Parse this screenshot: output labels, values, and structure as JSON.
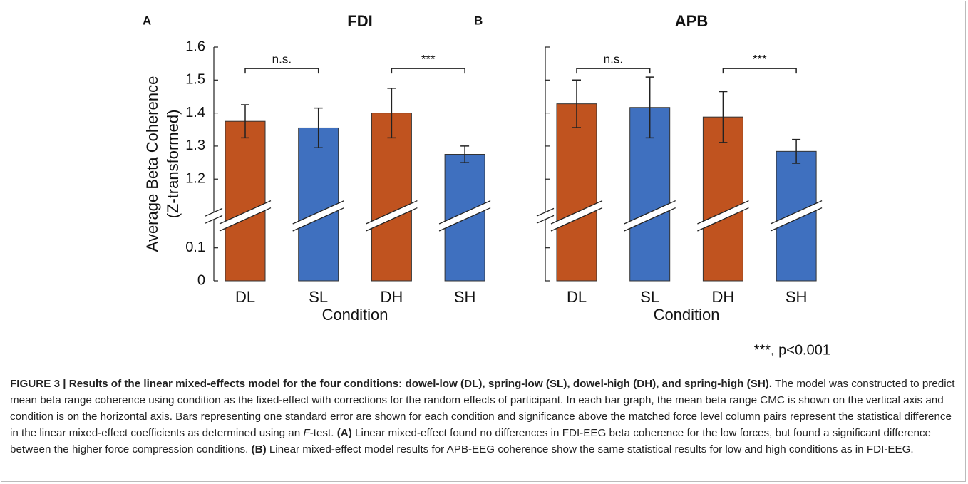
{
  "chart_data": [
    {
      "type": "bar",
      "panel": "A",
      "title": "FDI",
      "ylabel": [
        "Average Beta Coherence",
        "(Z-transformed)"
      ],
      "xlabel": "Condition",
      "categories": [
        "DL",
        "SL",
        "DH",
        "SH"
      ],
      "values": [
        1.375,
        1.355,
        1.4,
        1.275
      ],
      "errors": [
        0.05,
        0.06,
        0.075,
        0.025
      ],
      "colors": [
        "#c0531f",
        "#3f70bf",
        "#c0531f",
        "#3f70bf"
      ],
      "ylim": [
        0,
        1.6
      ],
      "axis_break": [
        0.17,
        1.12
      ],
      "yticks": [
        0,
        0.1,
        1.2,
        1.3,
        1.4,
        1.5,
        1.6
      ],
      "ytick_labels": true,
      "annotations": [
        {
          "text": "n.s.",
          "pair": [
            "DL",
            "SL"
          ],
          "level": 1.535
        },
        {
          "text": "***",
          "pair": [
            "DH",
            "SH"
          ],
          "level": 1.535
        }
      ]
    },
    {
      "type": "bar",
      "panel": "B",
      "title": "APB",
      "xlabel": "Condition",
      "categories": [
        "DL",
        "SL",
        "DH",
        "SH"
      ],
      "values": [
        1.428,
        1.417,
        1.388,
        1.284
      ],
      "errors": [
        0.072,
        0.092,
        0.077,
        0.036
      ],
      "colors": [
        "#c0531f",
        "#3f70bf",
        "#c0531f",
        "#3f70bf"
      ],
      "ylim": [
        0,
        1.6
      ],
      "axis_break": [
        0.17,
        1.12
      ],
      "yticks": [
        0,
        0.1,
        1.2,
        1.3,
        1.4,
        1.5,
        1.6
      ],
      "ytick_labels": false,
      "annotations": [
        {
          "text": "n.s.",
          "pair": [
            "DL",
            "SL"
          ],
          "level": 1.535
        },
        {
          "text": "***",
          "pair": [
            "DH",
            "SH"
          ],
          "level": 1.535
        }
      ]
    }
  ],
  "footnote": "***, p<0.001",
  "caption": {
    "title": "FIGURE 3 | Results of the linear mixed-effects model for the four conditions: dowel-low (DL), spring-low (SL), dowel-high (DH), and spring-high (SH).",
    "body": [
      {
        "text": " The model was constructed to predict mean beta range coherence using condition as the fixed-effect with corrections for the random effects of participant. In each bar graph, the mean beta range CMC is shown on the vertical axis and condition is on the horizontal axis. Bars representing one standard error are shown for each condition and significance above the matched force level column pairs represent the statistical difference in the linear mixed-effect coefficients as determined using an ",
        "style": "normal"
      },
      {
        "text": "F",
        "style": "italic"
      },
      {
        "text": "-test. ",
        "style": "normal"
      },
      {
        "text": "(A)",
        "style": "bold"
      },
      {
        "text": " Linear mixed-effect found no differences in FDI-EEG beta coherence for the low forces, but found a significant difference between the higher force compression conditions. ",
        "style": "normal"
      },
      {
        "text": "(B)",
        "style": "bold"
      },
      {
        "text": " Linear mixed-effect model results for APB-EEG coherence show the same statistical results for low and high conditions as in FDI-EEG.",
        "style": "normal"
      }
    ]
  }
}
